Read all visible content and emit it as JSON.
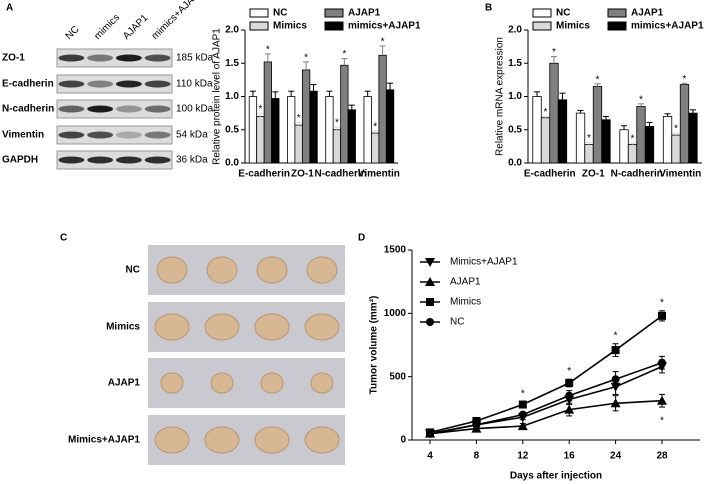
{
  "panel_labels": [
    "A",
    "B",
    "C",
    "D"
  ],
  "blot": {
    "lanes": [
      "NC",
      "mimics",
      "AJAP1",
      "mimics+AJAP1"
    ],
    "proteins": [
      "ZO-1",
      "E-cadherin",
      "N-cadherin",
      "Vimentin",
      "GAPDH"
    ],
    "sizes": [
      "185 kDa",
      "110 kDa",
      "100 kDa",
      "54 kDa",
      "36 kDa"
    ]
  },
  "tumors": {
    "groups": [
      "NC",
      "Mimics",
      "AJAP1",
      "Mimics+AJAP1"
    ]
  },
  "chart_data": [
    {
      "type": "bar",
      "ylabel": "Relative protein level of AJAP1",
      "categories": [
        "E-cadherin",
        "ZO-1",
        "N-cadherin",
        "Vimentin"
      ],
      "ylim": [
        0,
        2
      ],
      "yticks": [
        {
          "value": 0,
          "label": "0.0"
        },
        {
          "value": 0.5,
          "label": "0.5"
        },
        {
          "value": 1,
          "label": "1.0"
        },
        {
          "value": 1.5,
          "label": "1.5"
        },
        {
          "value": 2,
          "label": "2.0"
        }
      ],
      "series": [
        {
          "name": "NC",
          "color": "#ffffff",
          "values": [
            1,
            1,
            1,
            1
          ],
          "errors": [
            0.08,
            0.08,
            0.08,
            0.08
          ]
        },
        {
          "name": "Mimics",
          "color": "#d9d9d9",
          "values": [
            0.7,
            0.57,
            0.5,
            0.45
          ],
          "errors": [
            0.05,
            0.04,
            0.04,
            0.03
          ],
          "markers": [
            "*",
            "*",
            "*",
            "*"
          ]
        },
        {
          "name": "AJAP1",
          "color": "#808080",
          "values": [
            1.52,
            1.4,
            1.47,
            1.62
          ],
          "errors": [
            0.12,
            0.12,
            0.1,
            0.14
          ],
          "markers": [
            "*",
            "*",
            "*",
            "*"
          ]
        },
        {
          "name": "mimics+AJAP1",
          "color": "#000000",
          "values": [
            0.97,
            1.08,
            0.8,
            1.1
          ],
          "errors": [
            0.1,
            0.1,
            0.07,
            0.1
          ]
        }
      ]
    },
    {
      "type": "bar",
      "ylabel": "Relative mRNA expression",
      "categories": [
        "E-cadherin",
        "ZO-1",
        "N-cadherin",
        "Vimentin"
      ],
      "ylim": [
        0,
        2
      ],
      "yticks": [
        {
          "value": 0,
          "label": "0.0"
        },
        {
          "value": 0.5,
          "label": "0.5"
        },
        {
          "value": 1,
          "label": "1.0"
        },
        {
          "value": 1.5,
          "label": "1.5"
        },
        {
          "value": 2,
          "label": "2.0"
        }
      ],
      "series": [
        {
          "name": "NC",
          "color": "#ffffff",
          "values": [
            1,
            0.75,
            0.5,
            0.7
          ],
          "errors": [
            0.07,
            0.04,
            0.06,
            0.04
          ]
        },
        {
          "name": "Mimics",
          "color": "#d9d9d9",
          "values": [
            0.68,
            0.28,
            0.28,
            0.42
          ],
          "errors": [
            0.02,
            0.03,
            0.02,
            0.03
          ],
          "markers": [
            "*",
            "*",
            "*",
            "*"
          ]
        },
        {
          "name": "AJAP1",
          "color": "#808080",
          "values": [
            1.5,
            1.15,
            0.85,
            1.18
          ],
          "errors": [
            0.1,
            0.04,
            0.04,
            0.02
          ],
          "markers": [
            "*",
            "*",
            "*",
            "*"
          ]
        },
        {
          "name": "mimics+AJAP1",
          "color": "#000000",
          "values": [
            0.95,
            0.65,
            0.55,
            0.75
          ],
          "errors": [
            0.1,
            0.05,
            0.06,
            0.05
          ]
        }
      ]
    },
    {
      "type": "line",
      "xlabel": "Days after injection",
      "ylabel": "Tumor volume (mm³)",
      "categories": [
        "4",
        "8",
        "12",
        "16",
        "24",
        "28"
      ],
      "ylim": [
        0,
        1500
      ],
      "yticks": [
        0,
        500,
        1000,
        1500
      ],
      "series": [
        {
          "name": "Mimics+AJAP1",
          "color": "#000000",
          "marker": "triangle-down",
          "values": [
            50,
            120,
            180,
            320,
            420,
            580
          ],
          "errors": [
            10,
            15,
            20,
            40,
            60,
            50
          ]
        },
        {
          "name": "AJAP1",
          "color": "#000000",
          "marker": "triangle-up",
          "values": [
            50,
            90,
            110,
            240,
            290,
            310
          ],
          "errors": [
            10,
            15,
            20,
            50,
            60,
            50
          ],
          "markers": [
            null,
            null,
            null,
            null,
            null,
            "*"
          ],
          "marker_position": "below"
        },
        {
          "name": "Mimics",
          "color": "#000000",
          "marker": "square",
          "values": [
            60,
            150,
            280,
            450,
            710,
            980
          ],
          "errors": [
            10,
            15,
            20,
            30,
            50,
            40
          ],
          "markers": [
            null,
            null,
            "*",
            "*",
            "*",
            "*"
          ]
        },
        {
          "name": "NC",
          "color": "#000000",
          "marker": "circle",
          "values": [
            50,
            120,
            200,
            350,
            480,
            610
          ],
          "errors": [
            10,
            15,
            20,
            40,
            60,
            50
          ]
        }
      ]
    }
  ]
}
